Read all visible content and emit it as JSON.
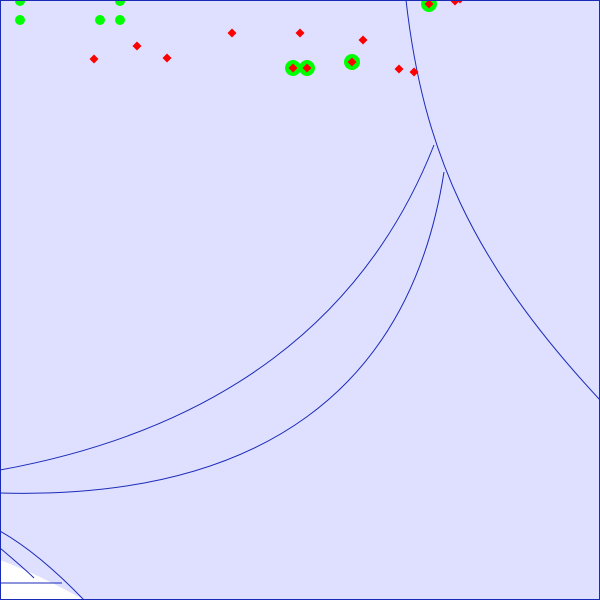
{
  "colors": {
    "region_fill": "#dfdfff",
    "outer_background": "#ffffff",
    "boundary_stroke": "#1a2bb8",
    "frame_stroke": "#1a2bb8",
    "green_point": "#00ff00",
    "red_point": "#ff0000"
  },
  "points": {
    "green_only": 5,
    "red_only": 10,
    "red_with_green_halo": 4
  }
}
